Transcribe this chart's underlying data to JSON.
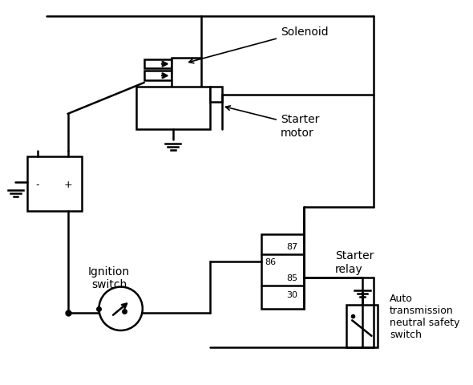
{
  "bg_color": "#ffffff",
  "line_color": "#000000",
  "line_width": 1.8,
  "fig_width": 5.9,
  "fig_height": 4.81,
  "dpi": 100,
  "labels": {
    "solenoid": "Solenoid",
    "starter_motor": [
      "Starter",
      "motor"
    ],
    "ignition_switch": [
      "Ignition",
      "switch"
    ],
    "starter_relay": [
      "Starter",
      "relay"
    ],
    "auto_trans": [
      "Auto",
      "transmission",
      "neutral safety",
      "switch"
    ],
    "relay_87": "87",
    "relay_86": "86",
    "relay_85": "85",
    "relay_30": "30",
    "minus": "-",
    "plus": "+"
  },
  "font_size": 9
}
